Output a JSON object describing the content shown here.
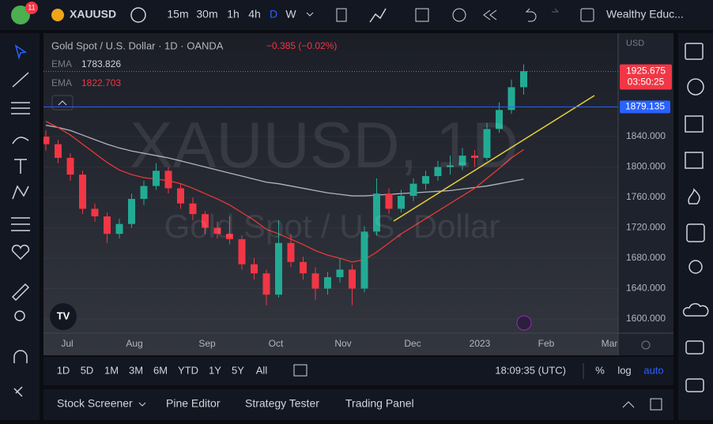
{
  "top_bar": {
    "badge": "11",
    "symbol": "XAUUSD",
    "intervals": [
      "15m",
      "30m",
      "1h",
      "4h",
      "D",
      "W"
    ],
    "active_interval": "D",
    "account": "Wealthy Educ..."
  },
  "legend": {
    "title": "Gold Spot / U.S. Dollar · 1D · OANDA",
    "change": "−0.385 (−0.02%)",
    "indicators": [
      {
        "name": "EMA",
        "value": 1783.826
      },
      {
        "name": "EMA",
        "value": 1822.703
      }
    ]
  },
  "watermark": {
    "line1": "XAUUSD, 1D",
    "line2": "Gold Spot / U.S. Dollar"
  },
  "chart": {
    "type": "candlestick",
    "currency": "USD",
    "ylim": [
      1581.3,
      1976.1
    ],
    "yticks": [
      {
        "value": 1600,
        "label": "1600.000"
      },
      {
        "value": 1640,
        "label": "1640.000"
      },
      {
        "value": 1680,
        "label": "1680.000"
      },
      {
        "value": 1720,
        "label": "1720.000"
      },
      {
        "value": 1760,
        "label": "1760.000"
      },
      {
        "value": 1800,
        "label": "1800.000"
      },
      {
        "value": 1840,
        "label": "1840.000"
      }
    ],
    "months": [
      "Jul",
      "Aug",
      "Sep",
      "Oct",
      "Nov",
      "Dec",
      "2023",
      "Feb",
      "Mar"
    ],
    "up_color": "#22ab94",
    "down_color": "#f23645",
    "candles": [
      [
        1840,
        1848,
        1822,
        1830
      ],
      [
        1830,
        1836,
        1805,
        1812
      ],
      [
        1812,
        1818,
        1782,
        1790
      ],
      [
        1790,
        1795,
        1738,
        1745
      ],
      [
        1745,
        1752,
        1728,
        1735
      ],
      [
        1735,
        1740,
        1700,
        1712
      ],
      [
        1712,
        1732,
        1706,
        1725
      ],
      [
        1725,
        1765,
        1720,
        1758
      ],
      [
        1758,
        1782,
        1750,
        1775
      ],
      [
        1775,
        1805,
        1770,
        1795
      ],
      [
        1795,
        1800,
        1765,
        1772
      ],
      [
        1772,
        1778,
        1745,
        1752
      ],
      [
        1752,
        1760,
        1730,
        1738
      ],
      [
        1738,
        1742,
        1712,
        1720
      ],
      [
        1720,
        1728,
        1706,
        1712
      ],
      [
        1712,
        1735,
        1698,
        1705
      ],
      [
        1705,
        1710,
        1665,
        1672
      ],
      [
        1672,
        1680,
        1652,
        1660
      ],
      [
        1660,
        1665,
        1618,
        1632
      ],
      [
        1632,
        1730,
        1628,
        1700
      ],
      [
        1700,
        1712,
        1668,
        1675
      ],
      [
        1675,
        1682,
        1652,
        1660
      ],
      [
        1660,
        1668,
        1625,
        1640
      ],
      [
        1640,
        1662,
        1632,
        1655
      ],
      [
        1655,
        1680,
        1648,
        1665
      ],
      [
        1665,
        1672,
        1618,
        1640
      ],
      [
        1640,
        1722,
        1635,
        1715
      ],
      [
        1715,
        1785,
        1710,
        1765
      ],
      [
        1765,
        1772,
        1738,
        1745
      ],
      [
        1745,
        1770,
        1740,
        1762
      ],
      [
        1762,
        1785,
        1755,
        1778
      ],
      [
        1778,
        1795,
        1770,
        1788
      ],
      [
        1788,
        1808,
        1782,
        1800
      ],
      [
        1800,
        1815,
        1790,
        1802
      ],
      [
        1802,
        1825,
        1796,
        1815
      ],
      [
        1815,
        1822,
        1800,
        1812
      ],
      [
        1812,
        1858,
        1808,
        1850
      ],
      [
        1850,
        1885,
        1845,
        1875
      ],
      [
        1875,
        1915,
        1870,
        1905
      ],
      [
        1905,
        1935,
        1895,
        1926
      ]
    ],
    "ema": [
      {
        "color": "#b2b5be",
        "values": [
          1855,
          1852,
          1848,
          1842,
          1836,
          1830,
          1825,
          1821,
          1818,
          1815,
          1812,
          1808,
          1804,
          1800,
          1796,
          1792,
          1788,
          1784,
          1780,
          1778,
          1775,
          1772,
          1769,
          1766,
          1764,
          1762,
          1762,
          1763,
          1764,
          1765,
          1766,
          1767,
          1768,
          1769,
          1771,
          1773,
          1775,
          1778,
          1781,
          1784
        ]
      },
      {
        "color": "#e53935",
        "values": [
          1860,
          1852,
          1842,
          1830,
          1818,
          1806,
          1796,
          1790,
          1786,
          1784,
          1782,
          1778,
          1772,
          1765,
          1758,
          1750,
          1740,
          1730,
          1718,
          1712,
          1705,
          1698,
          1690,
          1684,
          1680,
          1675,
          1678,
          1688,
          1700,
          1712,
          1722,
          1732,
          1742,
          1752,
          1762,
          1772,
          1785,
          1798,
          1812,
          1823
        ]
      }
    ],
    "last_price": 1925.675,
    "countdown": "03:50:25",
    "hline": 1879.135
  },
  "bottom_bar": {
    "ranges": [
      "1D",
      "5D",
      "1M",
      "3M",
      "6M",
      "YTD",
      "1Y",
      "5Y",
      "All"
    ],
    "time": "18:09:35 (UTC)",
    "percent": "%",
    "log": "log",
    "auto": "auto"
  },
  "panel": {
    "tabs": [
      "Stock Screener",
      "Pine Editor",
      "Strategy Tester",
      "Trading Panel"
    ]
  }
}
